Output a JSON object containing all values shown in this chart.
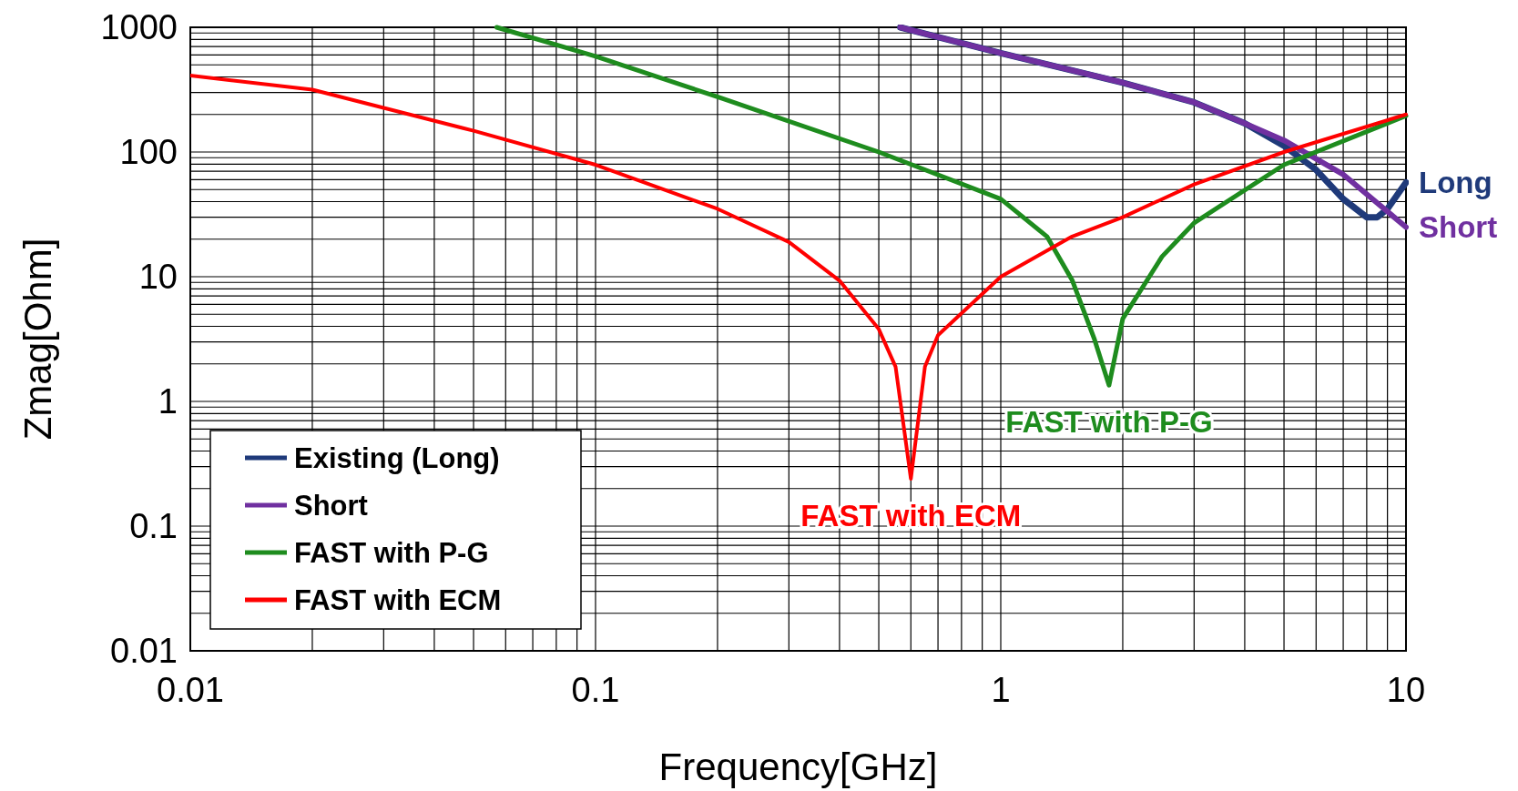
{
  "chart_data": {
    "type": "line",
    "xlabel": "Frequency[GHz]",
    "ylabel": "Zmag[Ohm]",
    "log": "xy",
    "grid": true,
    "legend": "bottom left",
    "marker": "none",
    "line_style": "solid",
    "xlim": [
      0.01,
      10
    ],
    "ylim": [
      0.01,
      1000
    ],
    "xticks": [
      {
        "value": 0.01,
        "label": "0.01"
      },
      {
        "value": 0.02,
        "label": null
      },
      {
        "value": 0.03,
        "label": null
      },
      {
        "value": 0.04,
        "label": null
      },
      {
        "value": 0.05,
        "label": null
      },
      {
        "value": 0.06,
        "label": null
      },
      {
        "value": 0.07,
        "label": null
      },
      {
        "value": 0.08,
        "label": null
      },
      {
        "value": 0.09,
        "label": null
      },
      {
        "value": 0.1,
        "label": "0.1"
      },
      {
        "value": 0.2,
        "label": null
      },
      {
        "value": 0.3,
        "label": null
      },
      {
        "value": 0.4,
        "label": null
      },
      {
        "value": 0.5,
        "label": null
      },
      {
        "value": 0.6,
        "label": null
      },
      {
        "value": 0.7,
        "label": null
      },
      {
        "value": 0.8,
        "label": null
      },
      {
        "value": 0.9,
        "label": null
      },
      1,
      {
        "value": 2,
        "label": null
      },
      {
        "value": 3,
        "label": null
      },
      {
        "value": 4,
        "label": null
      },
      {
        "value": 5,
        "label": null
      },
      {
        "value": 6,
        "label": null
      },
      {
        "value": 7,
        "label": null
      },
      {
        "value": 8,
        "label": null
      },
      {
        "value": 9,
        "label": null
      },
      10
    ],
    "yticks": [
      {
        "value": 0.01,
        "label": "0.01"
      },
      {
        "value": 0.02,
        "label": null
      },
      {
        "value": 0.03,
        "label": null
      },
      {
        "value": 0.04,
        "label": null
      },
      {
        "value": 0.05,
        "label": null
      },
      {
        "value": 0.06,
        "label": null
      },
      {
        "value": 0.07,
        "label": null
      },
      {
        "value": 0.08,
        "label": null
      },
      {
        "value": 0.09,
        "label": null
      },
      {
        "value": 0.1,
        "label": "0.1"
      },
      {
        "value": 0.2,
        "label": null
      },
      {
        "value": 0.3,
        "label": null
      },
      {
        "value": 0.4,
        "label": null
      },
      {
        "value": 0.5,
        "label": null
      },
      {
        "value": 0.6,
        "label": null
      },
      {
        "value": 0.7,
        "label": null
      },
      {
        "value": 0.8,
        "label": null
      },
      {
        "value": 0.9,
        "label": null
      },
      1,
      {
        "value": 2,
        "label": null
      },
      {
        "value": 3,
        "label": null
      },
      {
        "value": 4,
        "label": null
      },
      {
        "value": 5,
        "label": null
      },
      {
        "value": 6,
        "label": null
      },
      {
        "value": 7,
        "label": null
      },
      {
        "value": 8,
        "label": null
      },
      {
        "value": 9,
        "label": null
      },
      10,
      {
        "value": 20,
        "label": null
      },
      {
        "value": 30,
        "label": null
      },
      {
        "value": 40,
        "label": null
      },
      {
        "value": 50,
        "label": null
      },
      {
        "value": 60,
        "label": null
      },
      {
        "value": 70,
        "label": null
      },
      {
        "value": 80,
        "label": null
      },
      {
        "value": 90,
        "label": null
      },
      100,
      {
        "value": 200,
        "label": null
      },
      {
        "value": 300,
        "label": null
      },
      {
        "value": 400,
        "label": null
      },
      {
        "value": 500,
        "label": null
      },
      {
        "value": 600,
        "label": null
      },
      {
        "value": 700,
        "label": null
      },
      {
        "value": 800,
        "label": null
      },
      {
        "value": 900,
        "label": null
      },
      1000
    ],
    "series": [
      {
        "name": "Existing (Long)",
        "color": "#1f3a7a",
        "x": [
          0.565,
          1,
          2,
          3,
          4,
          5,
          6,
          7,
          8,
          8.5,
          9,
          10
        ],
        "values": [
          1000,
          620,
          360,
          250,
          170,
          112,
          72,
          42,
          30,
          30,
          35,
          57
        ]
      },
      {
        "name": "Short",
        "color": "#7030a0",
        "x": [
          0.565,
          1,
          2,
          3,
          4,
          5,
          7,
          10
        ],
        "values": [
          1000,
          620,
          360,
          250,
          170,
          124,
          66,
          25
        ]
      },
      {
        "name": "FAST with P-G",
        "color": "#1e8c1e",
        "x": [
          0.057,
          0.1,
          0.2,
          0.5,
          1,
          1.3,
          1.5,
          1.7,
          1.85,
          2,
          2.5,
          3,
          5,
          10
        ],
        "values": [
          1000,
          585,
          277,
          100,
          42,
          21,
          9.4,
          3.2,
          1.35,
          4.6,
          14.5,
          27,
          79,
          195
        ]
      },
      {
        "name": "FAST with ECM",
        "color": "#ff0000",
        "x": [
          0.01,
          0.02,
          0.05,
          0.1,
          0.2,
          0.3,
          0.4,
          0.5,
          0.55,
          0.6,
          0.65,
          0.7,
          1,
          1.5,
          2,
          3,
          5,
          10
        ],
        "values": [
          410,
          316,
          148,
          79,
          35,
          19,
          9.3,
          3.8,
          1.9,
          0.24,
          1.9,
          3.4,
          10,
          21,
          30,
          55,
          100,
          200
        ]
      }
    ],
    "annotations": [
      {
        "text": "Long",
        "x": 10,
        "y": 57
      },
      {
        "text": "Short",
        "x": 10,
        "y": 25
      },
      {
        "text": "FAST with P-G",
        "x": 1.85,
        "y": 1.35
      },
      {
        "text": "FAST with ECM",
        "x": 0.6,
        "y": 0.24
      }
    ]
  }
}
